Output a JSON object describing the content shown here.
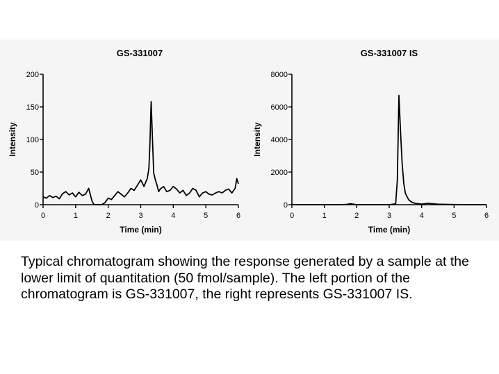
{
  "caption": "Typical chromatogram showing the response generated by a sample at the lower limit of quantitation (50 fmol/sample).  The left portion of the chromatogram is GS-331007, the right represents GS-331007 IS.",
  "chart_data": [
    {
      "type": "line",
      "title": "GS-331007",
      "xlabel": "Time (min)",
      "ylabel": "Intensity",
      "xlim": [
        0,
        6
      ],
      "ylim": [
        0,
        200
      ],
      "xticks": [
        0,
        1,
        2,
        3,
        4,
        5,
        6
      ],
      "yticks": [
        0,
        50,
        100,
        150,
        200
      ],
      "grid": false,
      "series": [
        {
          "color": "#000000",
          "x": [
            0.0,
            0.1,
            0.2,
            0.3,
            0.4,
            0.5,
            0.6,
            0.7,
            0.8,
            0.9,
            1.0,
            1.1,
            1.2,
            1.3,
            1.4,
            1.5,
            1.55,
            1.6,
            1.7,
            1.8,
            1.9,
            2.0,
            2.1,
            2.2,
            2.3,
            2.4,
            2.5,
            2.6,
            2.7,
            2.8,
            2.9,
            3.0,
            3.1,
            3.15,
            3.2,
            3.25,
            3.28,
            3.32,
            3.36,
            3.4,
            3.45,
            3.5,
            3.55,
            3.6,
            3.7,
            3.8,
            3.9,
            4.0,
            4.1,
            4.2,
            4.3,
            4.4,
            4.5,
            4.6,
            4.7,
            4.8,
            4.9,
            5.0,
            5.1,
            5.2,
            5.3,
            5.4,
            5.5,
            5.6,
            5.7,
            5.8,
            5.9,
            5.95,
            6.0
          ],
          "values": [
            12,
            10,
            14,
            11,
            13,
            9,
            17,
            20,
            15,
            18,
            12,
            19,
            14,
            16,
            25,
            6,
            1,
            0,
            0,
            0,
            3,
            10,
            8,
            14,
            20,
            16,
            12,
            18,
            25,
            22,
            30,
            38,
            28,
            34,
            40,
            55,
            90,
            158,
            100,
            48,
            38,
            30,
            20,
            24,
            28,
            20,
            22,
            28,
            24,
            18,
            22,
            14,
            18,
            25,
            22,
            12,
            18,
            20,
            16,
            15,
            18,
            20,
            18,
            22,
            24,
            18,
            25,
            40,
            32
          ]
        }
      ]
    },
    {
      "type": "line",
      "title": "GS-331007  IS",
      "xlabel": "Time (min)",
      "ylabel": "Intensity",
      "xlim": [
        0,
        6
      ],
      "ylim": [
        0,
        8000
      ],
      "xticks": [
        0,
        1,
        2,
        3,
        4,
        5,
        6
      ],
      "yticks": [
        0,
        2000,
        4000,
        6000,
        8000
      ],
      "grid": false,
      "series": [
        {
          "color": "#000000",
          "x": [
            0.0,
            0.5,
            1.0,
            1.5,
            1.7,
            1.8,
            1.9,
            2.0,
            2.5,
            3.0,
            3.2,
            3.25,
            3.3,
            3.35,
            3.4,
            3.45,
            3.5,
            3.6,
            3.7,
            3.8,
            4.0,
            4.2,
            4.5,
            5.0,
            5.5,
            6.0
          ],
          "values": [
            0,
            0,
            0,
            0,
            20,
            60,
            30,
            0,
            0,
            0,
            50,
            1500,
            6700,
            4500,
            2500,
            1300,
            700,
            300,
            150,
            80,
            40,
            80,
            30,
            10,
            0,
            0
          ]
        }
      ]
    }
  ]
}
